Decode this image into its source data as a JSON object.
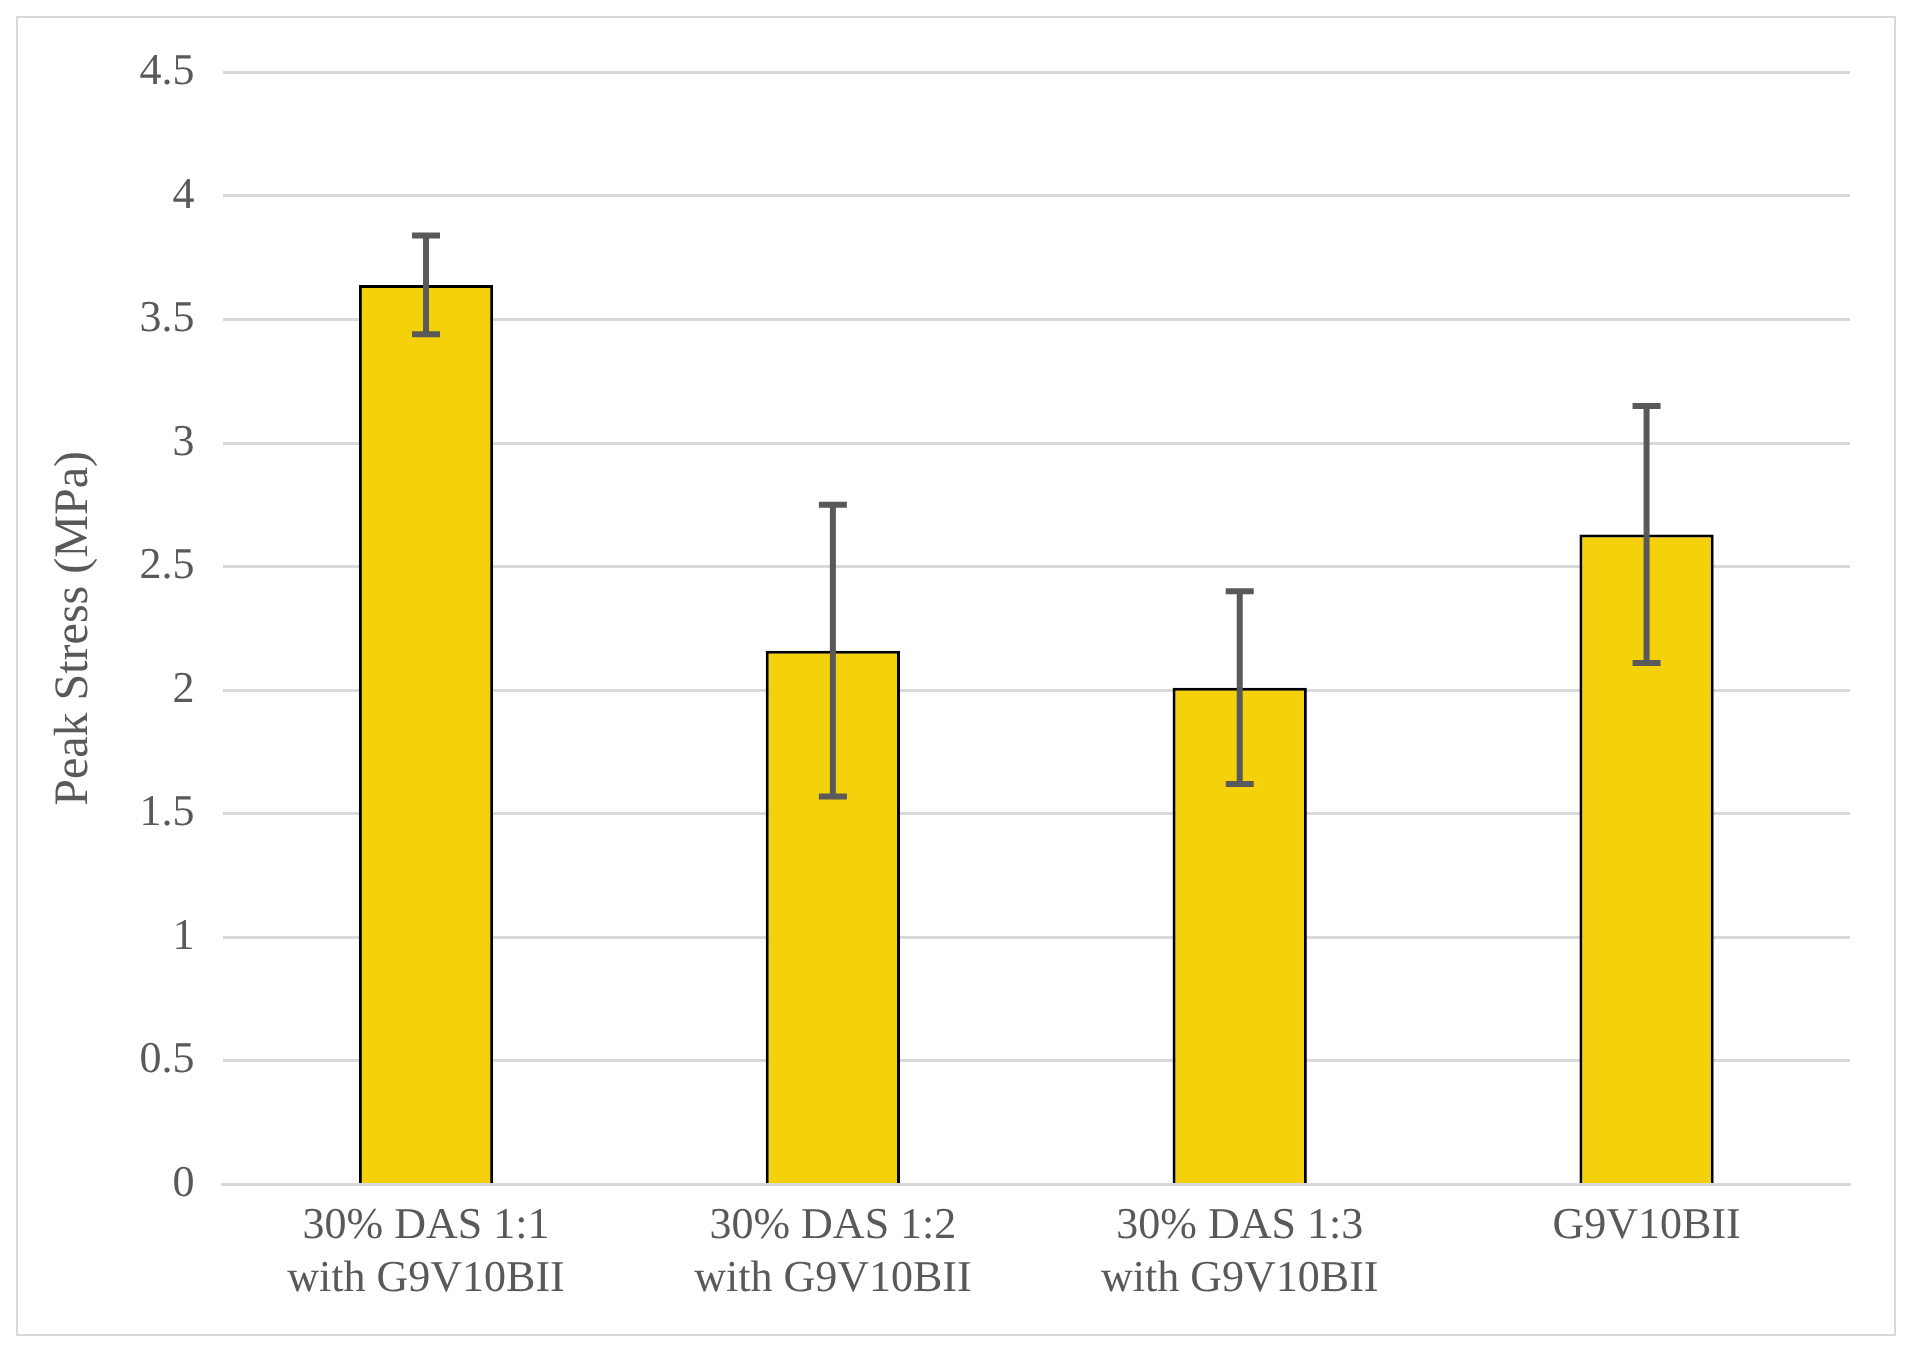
{
  "chart_data": {
    "type": "bar",
    "ylabel": "Peak Stress (MPa)",
    "categories": [
      "30% DAS 1:1 with G9V10BII",
      "30% DAS 1:2 with G9V10BII",
      "30% DAS 1:3 with G9V10BII",
      "G9V10BII"
    ],
    "values": [
      3.64,
      2.16,
      2.01,
      2.63
    ],
    "errors": [
      0.2,
      0.59,
      0.39,
      0.52
    ],
    "color": "#f5d10c",
    "ylim": [
      0,
      4.5
    ],
    "yticks": [
      0,
      0.5,
      1,
      1.5,
      2,
      2.5,
      3,
      3.5,
      4,
      4.5
    ],
    "grid": "y",
    "legend": false
  }
}
